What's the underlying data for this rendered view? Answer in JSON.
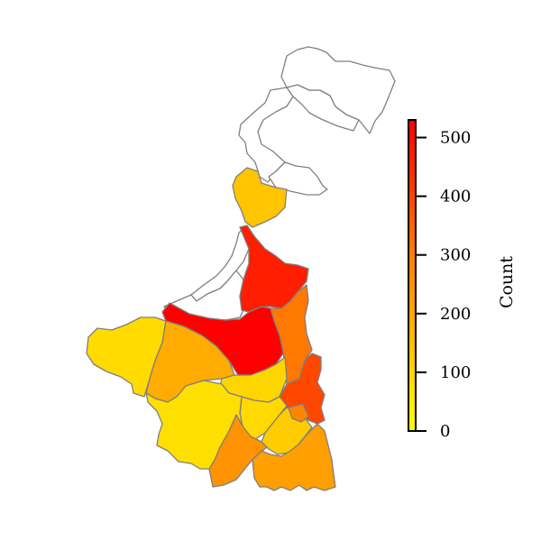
{
  "colorbar": {
    "label": "Count",
    "min": 0,
    "max": 530,
    "ticks": [
      "0",
      "100",
      "200",
      "300",
      "400",
      "500"
    ],
    "tick_values": [
      0,
      100,
      200,
      300,
      400,
      500
    ],
    "colormap": [
      "#ffff00",
      "#ffd700",
      "#ffa500",
      "#ff7f00",
      "#ff3f00",
      "#ff0000"
    ]
  },
  "colors": {
    "border": "#7f7f7f",
    "no_data": "#ffffff"
  },
  "regions": [
    {
      "name": "darjeeling",
      "value": null
    },
    {
      "name": "jalpaiguri",
      "value": null
    },
    {
      "name": "alipurduar",
      "value": null
    },
    {
      "name": "cooch-behar",
      "value": null
    },
    {
      "name": "uttar-dinajpur",
      "value": 145
    },
    {
      "name": "dakshin-dinajpur",
      "value": null
    },
    {
      "name": "malda",
      "value": null
    },
    {
      "name": "murshidabad",
      "value": 480
    },
    {
      "name": "birbhum",
      "value": 530
    },
    {
      "name": "nadia",
      "value": 330
    },
    {
      "name": "north-24-parganas",
      "value": 410
    },
    {
      "name": "purulia",
      "value": 95
    },
    {
      "name": "bankura",
      "value": 200
    },
    {
      "name": "bardhaman",
      "value": 110
    },
    {
      "name": "hooghly",
      "value": 100
    },
    {
      "name": "paschim-medinipur",
      "value": 85
    },
    {
      "name": "howrah",
      "value": 130
    },
    {
      "name": "purba-medinipur",
      "value": 265
    },
    {
      "name": "kolkata",
      "value": 300
    },
    {
      "name": "south-24-parganas",
      "value": 230
    }
  ]
}
